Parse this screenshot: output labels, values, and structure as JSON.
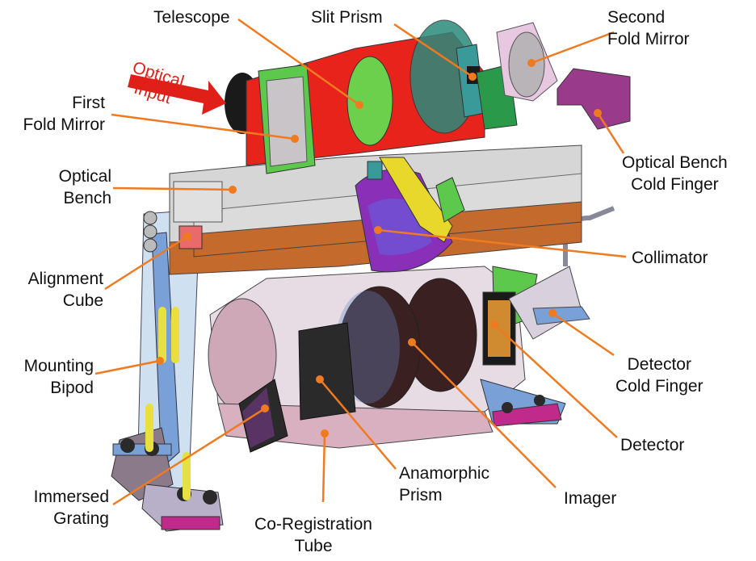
{
  "labels": {
    "telescope": [
      "Telescope"
    ],
    "slit_prism": [
      "Slit Prism"
    ],
    "second_fold_mirror": [
      "Second",
      "Fold Mirror"
    ],
    "first_fold_mirror": [
      "First",
      "Fold Mirror"
    ],
    "optical_input": [
      "Optical",
      "Input"
    ],
    "optical_bench": [
      "Optical",
      "Bench"
    ],
    "optical_bench_cold_finger": [
      "Optical Bench",
      "Cold Finger"
    ],
    "alignment_cube": [
      "Alignment",
      "Cube"
    ],
    "collimator": [
      "Collimator"
    ],
    "mounting_bipod": [
      "Mounting",
      "Bipod"
    ],
    "detector_cold_finger": [
      "Detector",
      "Cold Finger"
    ],
    "detector": [
      "Detector"
    ],
    "immersed_grating": [
      "Immersed",
      "Grating"
    ],
    "co_registration_tube": [
      "Co-Registration",
      "Tube"
    ],
    "anamorphic_prism": [
      "Anamorphic",
      "Prism"
    ],
    "imager": [
      "Imager"
    ]
  },
  "colors": {
    "leader": "#f07a20",
    "optical_input_arrow": "#e02018",
    "telescope": "#e8231c",
    "fold_mirror": "#c8c4c8",
    "green_part": "#5cc84c",
    "bench_copper": "#c46a2c",
    "bench_gray": "#c8c8c8",
    "collimator": "#8a2fb8",
    "structure_pink": "#d8b0c0",
    "bipod_blue": "#7aa0d8",
    "grating_purple": "#7a3a8a",
    "yellow_part": "#e8d82c",
    "dark_lens": "#3a2020"
  }
}
